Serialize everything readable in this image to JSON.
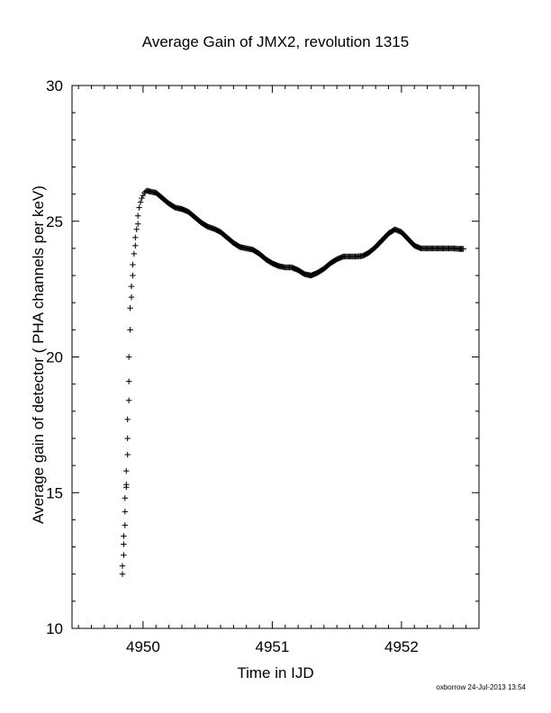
{
  "chart_data": {
    "type": "scatter",
    "title": "Average Gain of JMX2, revolution 1315",
    "xlabel": "Time in IJD",
    "ylabel": "Average gain of detector ( PHA channels per keV)",
    "xlim": [
      4949.45,
      4952.6
    ],
    "ylim": [
      10,
      30
    ],
    "xticks": [
      4950,
      4951,
      4952
    ],
    "yticks": [
      10,
      15,
      20,
      25,
      30
    ],
    "grid": false,
    "marker": "+",
    "color": "#000000",
    "rise": {
      "x": [
        4949.84,
        4949.84,
        4949.85,
        4949.85,
        4949.85,
        4949.86,
        4949.86,
        4949.86,
        4949.87,
        4949.87,
        4949.87,
        4949.88,
        4949.88,
        4949.88,
        4949.89,
        4949.89,
        4949.89,
        4949.9,
        4949.9,
        4949.91,
        4949.91,
        4949.92,
        4949.92,
        4949.93,
        4949.94,
        4949.94,
        4949.95,
        4949.96,
        4949.96,
        4949.97,
        4949.98,
        4949.99,
        4950.0,
        4950.01,
        4950.02,
        4950.03
      ],
      "y": [
        12.0,
        12.3,
        12.7,
        13.1,
        13.4,
        13.8,
        14.3,
        14.8,
        15.2,
        15.3,
        15.8,
        16.4,
        17.0,
        17.7,
        18.4,
        19.1,
        20.0,
        21.0,
        21.8,
        22.2,
        22.6,
        23.0,
        23.4,
        23.8,
        24.1,
        24.4,
        24.7,
        24.9,
        25.2,
        25.5,
        25.7,
        25.85,
        25.95,
        26.05,
        26.1,
        26.12
      ]
    },
    "curve": {
      "x": [
        4950.03,
        4950.1,
        4950.15,
        4950.2,
        4950.25,
        4950.3,
        4950.35,
        4950.4,
        4950.45,
        4950.5,
        4950.55,
        4950.6,
        4950.65,
        4950.7,
        4950.75,
        4950.8,
        4950.85,
        4950.9,
        4950.95,
        4951.0,
        4951.05,
        4951.1,
        4951.15,
        4951.2,
        4951.25,
        4951.3,
        4951.35,
        4951.4,
        4951.45,
        4951.5,
        4951.55,
        4951.6,
        4951.65,
        4951.7,
        4951.75,
        4951.8,
        4951.85,
        4951.9,
        4951.95,
        4952.0,
        4952.05,
        4952.1,
        4952.15,
        4952.2,
        4952.25,
        4952.3,
        4952.35,
        4952.4,
        4952.45,
        4952.48
      ],
      "y": [
        26.12,
        26.05,
        25.85,
        25.65,
        25.5,
        25.45,
        25.35,
        25.15,
        24.95,
        24.8,
        24.72,
        24.6,
        24.4,
        24.2,
        24.05,
        24.0,
        23.95,
        23.8,
        23.6,
        23.45,
        23.35,
        23.3,
        23.3,
        23.2,
        23.05,
        23.0,
        23.1,
        23.25,
        23.45,
        23.6,
        23.7,
        23.7,
        23.7,
        23.72,
        23.85,
        24.05,
        24.3,
        24.55,
        24.7,
        24.6,
        24.35,
        24.1,
        24.0,
        24.0,
        24.0,
        24.0,
        24.0,
        24.0,
        23.98,
        23.98
      ]
    }
  },
  "footer_text": "oxborrow 24-Jul-2013 13:54"
}
